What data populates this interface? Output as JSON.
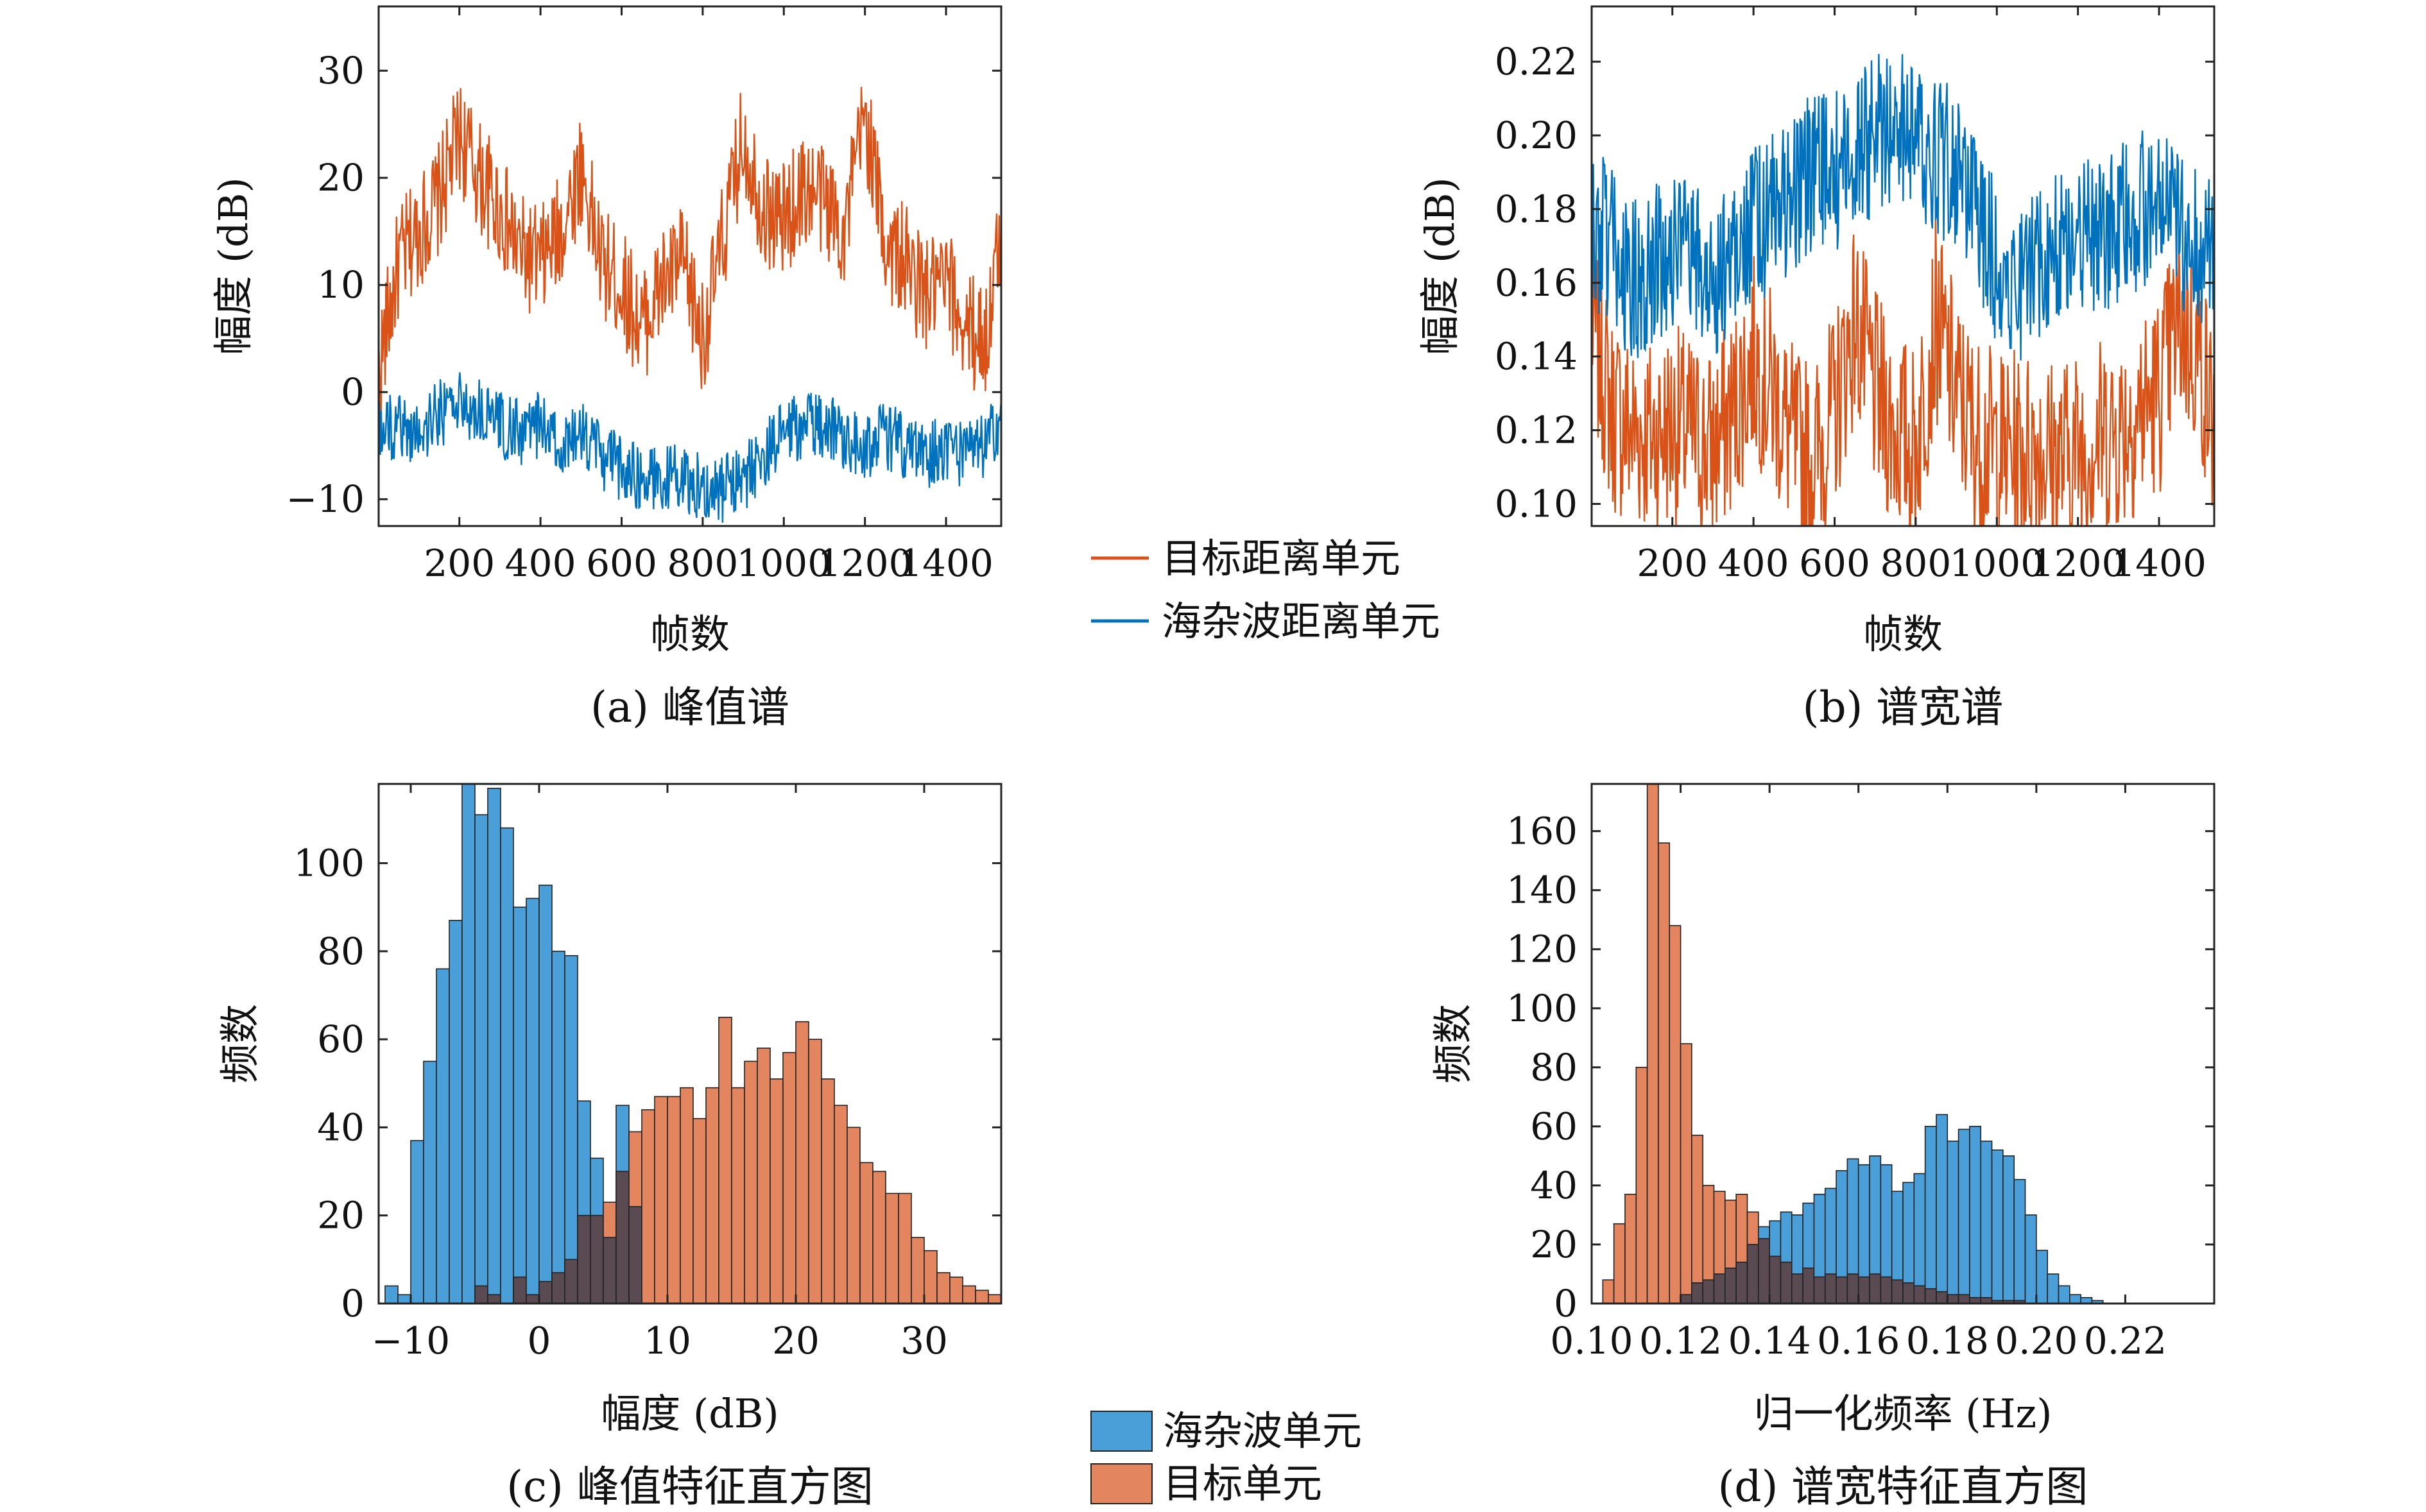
{
  "colors": {
    "target": "#D95319",
    "clutter": "#0072BD",
    "target_bar": "#E3855E",
    "clutter_bar": "#4A9FD8",
    "overlap_bar": "#5A4A52"
  },
  "captions": [
    "(a) 峰值谱",
    "(b) 谱宽谱",
    "(c) 峰值特征直方图",
    "(d) 谱宽特征直方图"
  ],
  "legend_lines": {
    "items": [
      {
        "label": "目标距离单元",
        "color": "#D95319"
      },
      {
        "label": "海杂波距离单元",
        "color": "#0072BD"
      }
    ]
  },
  "legend_bars": {
    "items": [
      {
        "label": "海杂波单元",
        "color": "#4A9FD8"
      },
      {
        "label": "目标单元",
        "color": "#E3855E"
      }
    ]
  },
  "chart_data": [
    {
      "type": "line",
      "panel": "a",
      "xlabel": "帧数",
      "ylabel": "幅度 (dB)",
      "xlim": [
        1,
        1536
      ],
      "ylim": [
        -12.5,
        36
      ],
      "xticks": [
        200,
        400,
        600,
        800,
        1000,
        1200,
        1400
      ],
      "yticks": [
        -10,
        0,
        10,
        20,
        30
      ],
      "series": [
        {
          "name": "目标距离单元",
          "x": [
            1,
            50,
            100,
            150,
            200,
            250,
            300,
            350,
            400,
            450,
            500,
            550,
            600,
            650,
            700,
            750,
            800,
            850,
            900,
            950,
            1000,
            1050,
            1100,
            1150,
            1200,
            1250,
            1300,
            1350,
            1400,
            1450,
            1500,
            1536
          ],
          "y": [
            2,
            12,
            15,
            18,
            24,
            20,
            17,
            13,
            12,
            15,
            21,
            12,
            10,
            6,
            10,
            12,
            5,
            14,
            24,
            17,
            16,
            19,
            18,
            15,
            26,
            14,
            12,
            9,
            10,
            6,
            5,
            15
          ]
        },
        {
          "name": "海杂波距离单元",
          "x": [
            1,
            50,
            100,
            150,
            200,
            250,
            300,
            350,
            400,
            450,
            500,
            550,
            600,
            650,
            700,
            750,
            800,
            850,
            900,
            950,
            1000,
            1050,
            1100,
            1150,
            1200,
            1250,
            1300,
            1350,
            1400,
            1450,
            1500,
            1536
          ],
          "y": [
            -4,
            -3,
            -4,
            -2,
            -1,
            -2,
            -3,
            -4,
            -3,
            -5,
            -4,
            -6,
            -7,
            -8,
            -8,
            -8,
            -9,
            -9,
            -8,
            -6,
            -4,
            -3,
            -3,
            -4,
            -5,
            -4,
            -5,
            -6,
            -5,
            -6,
            -5,
            -2
          ]
        }
      ]
    },
    {
      "type": "line",
      "panel": "b",
      "xlabel": "帧数",
      "ylabel": "幅度 (dB)",
      "xlim": [
        1,
        1536
      ],
      "ylim": [
        0.094,
        0.235
      ],
      "xticks": [
        200,
        400,
        600,
        800,
        1000,
        1200,
        1400
      ],
      "yticks": [
        0.1,
        0.12,
        0.14,
        0.16,
        0.18,
        0.2,
        0.22
      ],
      "series": [
        {
          "name": "目标距离单元",
          "x": [
            1,
            50,
            100,
            150,
            200,
            250,
            300,
            350,
            400,
            450,
            500,
            550,
            600,
            650,
            700,
            750,
            800,
            850,
            900,
            950,
            1000,
            1050,
            1100,
            1150,
            1200,
            1250,
            1300,
            1350,
            1400,
            1450,
            1500,
            1536
          ],
          "y": [
            0.15,
            0.125,
            0.12,
            0.118,
            0.122,
            0.118,
            0.115,
            0.125,
            0.14,
            0.13,
            0.115,
            0.112,
            0.125,
            0.15,
            0.13,
            0.12,
            0.115,
            0.15,
            0.13,
            0.118,
            0.115,
            0.114,
            0.116,
            0.112,
            0.115,
            0.118,
            0.12,
            0.125,
            0.13,
            0.15,
            0.14,
            0.12
          ]
        },
        {
          "name": "海杂波距离单元",
          "x": [
            1,
            50,
            100,
            150,
            200,
            250,
            300,
            350,
            400,
            450,
            500,
            550,
            600,
            650,
            700,
            750,
            800,
            850,
            900,
            950,
            1000,
            1050,
            1100,
            1150,
            1200,
            1250,
            1300,
            1350,
            1400,
            1450,
            1500,
            1536
          ],
          "y": [
            0.175,
            0.17,
            0.16,
            0.165,
            0.17,
            0.165,
            0.16,
            0.17,
            0.175,
            0.18,
            0.185,
            0.19,
            0.19,
            0.195,
            0.2,
            0.205,
            0.2,
            0.195,
            0.19,
            0.18,
            0.165,
            0.16,
            0.165,
            0.17,
            0.175,
            0.17,
            0.175,
            0.18,
            0.18,
            0.175,
            0.17,
            0.165
          ]
        }
      ]
    },
    {
      "type": "bar",
      "panel": "c",
      "xlabel": "幅度 (dB)",
      "ylabel": "频数",
      "xlim": [
        -12.5,
        36
      ],
      "ylim": [
        0,
        118
      ],
      "xticks": [
        -10,
        0,
        10,
        20,
        30
      ],
      "yticks": [
        0,
        20,
        40,
        60,
        80,
        100
      ],
      "bin_start": -12,
      "bin_width": 1,
      "series": [
        {
          "name": "海杂波单元",
          "values": [
            4,
            2,
            37,
            55,
            76,
            87,
            118,
            111,
            117,
            108,
            90,
            92,
            95,
            80,
            79,
            46,
            33,
            15,
            45,
            22,
            0,
            0,
            0,
            0,
            0,
            0,
            0,
            0,
            0,
            0,
            0,
            0,
            0,
            0,
            0,
            0,
            0,
            0,
            0,
            0,
            0,
            0,
            0,
            0,
            0,
            0,
            0
          ]
        },
        {
          "name": "目标单元",
          "values": [
            0,
            0,
            0,
            0,
            0,
            0,
            0,
            4,
            2,
            0,
            6,
            2,
            5,
            7,
            10,
            20,
            20,
            23,
            30,
            39,
            44,
            47,
            47,
            49,
            42,
            49,
            65,
            49,
            55,
            58,
            51,
            57,
            64,
            60,
            51,
            45,
            40,
            32,
            30,
            25,
            25,
            15,
            12,
            7,
            6,
            4,
            3,
            2,
            5,
            3,
            1
          ]
        }
      ]
    },
    {
      "type": "bar",
      "panel": "d",
      "xlabel": "归一化频率 (Hz)",
      "ylabel": "频数",
      "xlim": [
        0.1,
        0.24
      ],
      "ylim": [
        0,
        176
      ],
      "xticks": [
        0.1,
        0.12,
        0.14,
        0.16,
        0.18,
        0.2,
        0.22
      ],
      "yticks": [
        0,
        20,
        40,
        60,
        80,
        100,
        120,
        140,
        160
      ],
      "bin_start": 0.1,
      "bin_width": 0.0025,
      "series": [
        {
          "name": "海杂波单元",
          "values": [
            0,
            0,
            0,
            0,
            0,
            0,
            0,
            0,
            3,
            7,
            8,
            10,
            12,
            14,
            20,
            26,
            28,
            31,
            30,
            34,
            37,
            39,
            45,
            49,
            47,
            50,
            47,
            38,
            41,
            44,
            60,
            64,
            55,
            59,
            60,
            55,
            52,
            50,
            42,
            30,
            18,
            10,
            6,
            3,
            2,
            1,
            0,
            0,
            0,
            0,
            0,
            0,
            0,
            0,
            0,
            0
          ]
        },
        {
          "name": "目标单元",
          "values": [
            0,
            8,
            27,
            37,
            80,
            176,
            156,
            128,
            88,
            57,
            40,
            38,
            35,
            37,
            31,
            22,
            16,
            14,
            10,
            12,
            9,
            10,
            9,
            10,
            9,
            10,
            9,
            8,
            7,
            6,
            5,
            4,
            3,
            3,
            2,
            2,
            1,
            1,
            1,
            0,
            0,
            0,
            0,
            0,
            0,
            0,
            0,
            0,
            0,
            0,
            0,
            0,
            0,
            0,
            0,
            0
          ]
        }
      ]
    }
  ]
}
